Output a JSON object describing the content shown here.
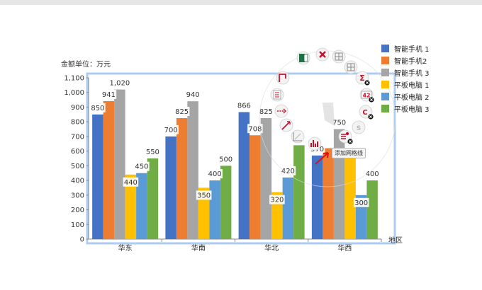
{
  "unit_label": "金额单位：万元",
  "x_axis_title": "地区",
  "tooltip": "添加网格线",
  "toolbar": {
    "items": [
      {
        "icon": "excel-icon"
      },
      {
        "icon": "delete-icon"
      },
      {
        "icon": "columns-icon"
      },
      {
        "icon": "rows-icon"
      },
      {
        "icon": "sum-icon"
      },
      {
        "icon": "data-label-icon",
        "text": "42"
      },
      {
        "icon": "chart-style-icon"
      },
      {
        "icon": "series-icon",
        "text": "S"
      },
      {
        "icon": "add-gridlines-icon"
      },
      {
        "icon": "bar-chart-icon"
      },
      {
        "icon": "axis-icon"
      },
      {
        "icon": "trendline-icon"
      },
      {
        "icon": "error-bars-icon"
      },
      {
        "icon": "legend-icon"
      },
      {
        "icon": "axis-title-icon"
      }
    ]
  },
  "colors": {
    "series": [
      "#4472c4",
      "#ed7d31",
      "#a5a5a5",
      "#ffc000",
      "#5b9bd5",
      "#70ad47"
    ],
    "selection": "#6aa3e8",
    "accent": "#c8102e"
  },
  "chart_data": {
    "type": "bar",
    "categories": [
      "华东",
      "华南",
      "华北",
      "华西"
    ],
    "series": [
      {
        "name": "智能手机 1",
        "values": [
          850,
          700,
          866,
          570
        ]
      },
      {
        "name": "智能手机2",
        "values": [
          941,
          825,
          708,
          620
        ]
      },
      {
        "name": "智能手机 3",
        "values": [
          1020,
          940,
          825,
          750
        ]
      },
      {
        "name": "平板电脑 1",
        "values": [
          440,
          350,
          320,
          600
        ]
      },
      {
        "name": "平板电脑 2",
        "values": [
          450,
          400,
          420,
          300
        ]
      },
      {
        "name": "平板电脑 3",
        "values": [
          550,
          500,
          640,
          400
        ]
      }
    ],
    "data_labels": [
      [
        "850",
        "941",
        "1,020",
        "440",
        "450",
        "550"
      ],
      [
        "700",
        "825",
        "940",
        "350",
        "400",
        "500"
      ],
      [
        "866",
        "708",
        "825",
        "320",
        "420",
        ""
      ],
      [
        "570",
        "",
        "750",
        "",
        "300",
        "400"
      ]
    ],
    "y_ticks": [
      "0",
      "100",
      "200",
      "300",
      "400",
      "500",
      "600",
      "700",
      "800",
      "900",
      "1,000",
      "1,100"
    ],
    "ylim": [
      0,
      1100
    ],
    "legend_position": "right"
  }
}
